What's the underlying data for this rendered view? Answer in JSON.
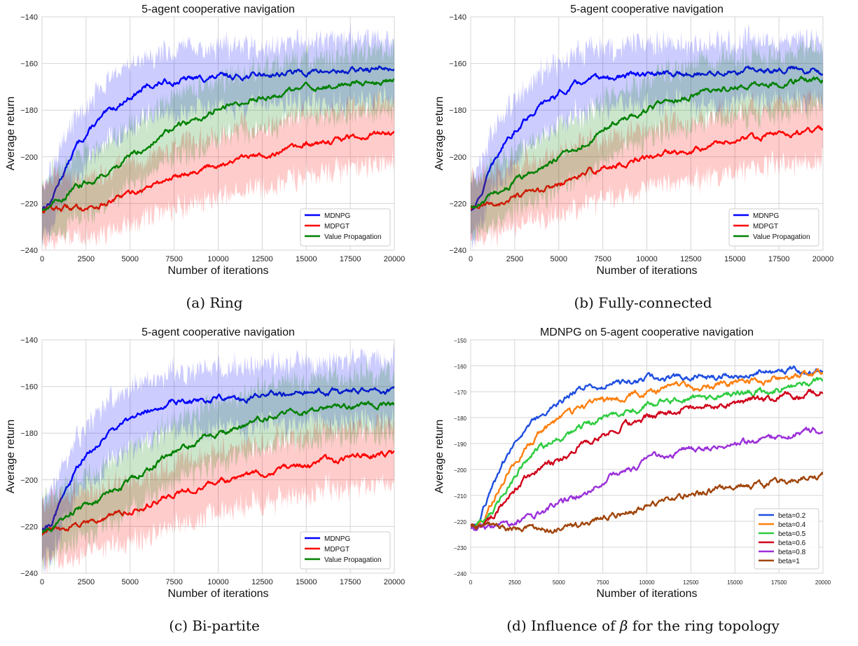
{
  "figure": {
    "captions": {
      "a": "(a) Ring",
      "b": "(b) Fully-connected",
      "c": "(c) Bi-partite",
      "d_prefix": "(d) Influence of ",
      "d_symbol": "β",
      "d_suffix": " for the ring topology"
    }
  },
  "chart_data": [
    {
      "id": "a",
      "type": "line",
      "title": "5-agent cooperative navigation",
      "xlabel": "Number of iterations",
      "ylabel": "Average return",
      "xlim": [
        0,
        20000
      ],
      "ylim": [
        -240,
        -140
      ],
      "xticks": [
        0,
        2500,
        5000,
        7500,
        10000,
        12500,
        15000,
        17500,
        20000
      ],
      "yticks": [
        -240,
        -220,
        -200,
        -180,
        -160,
        -140
      ],
      "grid": true,
      "legend": "bottom-right",
      "shaded_band": true,
      "x": [
        0,
        500,
        1000,
        2000,
        3000,
        4000,
        5000,
        6000,
        7000,
        8000,
        10000,
        12000,
        14000,
        16000,
        18000,
        20000
      ],
      "series": [
        {
          "name": "MDNPG",
          "color": "#0000ff",
          "values": [
            -222,
            -219,
            -210,
            -195,
            -186,
            -180,
            -174,
            -170,
            -168,
            -167,
            -166,
            -165,
            -164,
            -163.5,
            -163,
            -162
          ]
        },
        {
          "name": "MDPGT",
          "color": "#ff0000",
          "values": [
            -223,
            -222,
            -222,
            -222,
            -221,
            -219,
            -216,
            -213,
            -210,
            -207,
            -203,
            -200,
            -197,
            -194,
            -191,
            -189
          ]
        },
        {
          "name": "Value Propagation",
          "color": "#008000",
          "values": [
            -222,
            -221,
            -218,
            -213,
            -209,
            -205,
            -200,
            -195,
            -190,
            -186,
            -180,
            -175,
            -172,
            -170,
            -168,
            -167
          ]
        }
      ]
    },
    {
      "id": "b",
      "type": "line",
      "title": "5-agent cooperative navigation",
      "xlabel": "Number of iterations",
      "ylabel": "Average return",
      "xlim": [
        0,
        20000
      ],
      "ylim": [
        -240,
        -140
      ],
      "xticks": [
        0,
        2500,
        5000,
        7500,
        10000,
        12500,
        15000,
        17500,
        20000
      ],
      "yticks": [
        -240,
        -220,
        -200,
        -180,
        -160,
        -140
      ],
      "grid": true,
      "legend": "bottom-right",
      "shaded_band": true,
      "x": [
        0,
        500,
        1000,
        2000,
        3000,
        4000,
        5000,
        6000,
        7000,
        8000,
        10000,
        12000,
        14000,
        16000,
        18000,
        20000
      ],
      "series": [
        {
          "name": "MDNPG",
          "color": "#0000ff",
          "values": [
            -223,
            -218,
            -208,
            -193,
            -184,
            -178,
            -173,
            -169,
            -167,
            -166,
            -165,
            -164.5,
            -164,
            -163,
            -162,
            -163
          ]
        },
        {
          "name": "MDPGT",
          "color": "#ff0000",
          "values": [
            -223,
            -222,
            -221,
            -219,
            -217,
            -215,
            -212,
            -209,
            -206,
            -204,
            -200,
            -197,
            -194,
            -192,
            -190,
            -189
          ]
        },
        {
          "name": "Value Propagation",
          "color": "#008000",
          "values": [
            -222,
            -221,
            -218,
            -213,
            -209,
            -205,
            -200,
            -196,
            -191,
            -186,
            -180,
            -175,
            -171,
            -169,
            -168,
            -167
          ]
        }
      ]
    },
    {
      "id": "c",
      "type": "line",
      "title": "5-agent cooperative navigation",
      "xlabel": "Number of iterations",
      "ylabel": "Average return",
      "xlim": [
        0,
        20000
      ],
      "ylim": [
        -240,
        -140
      ],
      "xticks": [
        0,
        2500,
        5000,
        7500,
        10000,
        12500,
        15000,
        17500,
        20000
      ],
      "yticks": [
        -240,
        -220,
        -200,
        -180,
        -160,
        -140
      ],
      "grid": true,
      "legend": "bottom-right",
      "shaded_band": true,
      "x": [
        0,
        500,
        1000,
        2000,
        3000,
        4000,
        5000,
        6000,
        7000,
        8000,
        10000,
        12000,
        14000,
        16000,
        18000,
        20000
      ],
      "series": [
        {
          "name": "MDNPG",
          "color": "#0000ff",
          "values": [
            -221,
            -219,
            -210,
            -195,
            -186,
            -179,
            -174,
            -170,
            -167,
            -166,
            -165,
            -164,
            -163,
            -162.5,
            -162,
            -161
          ]
        },
        {
          "name": "MDPGT",
          "color": "#ff0000",
          "values": [
            -223,
            -222,
            -222,
            -220,
            -218,
            -216,
            -213,
            -210,
            -207,
            -205,
            -201,
            -198,
            -195,
            -192,
            -190,
            -189
          ]
        },
        {
          "name": "Value Propagation",
          "color": "#008000",
          "values": [
            -222,
            -221,
            -218,
            -213,
            -209,
            -205,
            -200,
            -195,
            -190,
            -186,
            -180,
            -175,
            -171,
            -169,
            -168,
            -167
          ]
        }
      ]
    },
    {
      "id": "d",
      "type": "line",
      "title": "MDNPG on 5-agent cooperative navigation",
      "xlabel": "Number of iterations",
      "ylabel": "Average return",
      "xlim": [
        0,
        20000
      ],
      "ylim": [
        -240,
        -150
      ],
      "xticks": [
        0,
        2500,
        5000,
        7500,
        10000,
        12500,
        15000,
        17500,
        20000
      ],
      "yticks": [
        -240,
        -230,
        -220,
        -210,
        -200,
        -190,
        -180,
        -170,
        -160,
        -150
      ],
      "grid": true,
      "legend": "bottom-right",
      "shaded_band": false,
      "x": [
        0,
        500,
        1000,
        2000,
        3000,
        4000,
        5000,
        6000,
        7000,
        8000,
        10000,
        12000,
        14000,
        16000,
        18000,
        20000
      ],
      "series": [
        {
          "name": "beta=0.2",
          "color": "#1f4fe0",
          "values": [
            -222,
            -220,
            -210,
            -196,
            -186,
            -179,
            -174,
            -170,
            -168,
            -167,
            -166,
            -165,
            -164,
            -163,
            -162,
            -162
          ]
        },
        {
          "name": "beta=0.4",
          "color": "#ff7f0e",
          "values": [
            -222,
            -221,
            -216,
            -203,
            -193,
            -186,
            -181,
            -178,
            -175,
            -173,
            -170,
            -168,
            -167,
            -166,
            -165,
            -163
          ]
        },
        {
          "name": "beta=0.5",
          "color": "#2ecc40",
          "values": [
            -222,
            -222,
            -219,
            -208,
            -198,
            -192,
            -188,
            -185,
            -182,
            -179,
            -175,
            -173,
            -172,
            -170,
            -168,
            -165
          ]
        },
        {
          "name": "beta=0.6",
          "color": "#d0021b",
          "values": [
            -222,
            -222,
            -220,
            -212,
            -204,
            -199,
            -197,
            -192,
            -188,
            -185,
            -180,
            -177,
            -175,
            -173,
            -172,
            -170
          ]
        },
        {
          "name": "beta=0.8",
          "color": "#9b30d9",
          "values": [
            -223,
            -223,
            -223,
            -222,
            -220,
            -217,
            -213,
            -210,
            -206,
            -202,
            -197,
            -193,
            -191,
            -189,
            -187,
            -185
          ]
        },
        {
          "name": "beta=1",
          "color": "#a0450b",
          "values": [
            -222,
            -222,
            -222,
            -222,
            -223,
            -224,
            -223,
            -222,
            -220,
            -218,
            -214,
            -210,
            -208,
            -206,
            -204,
            -202
          ]
        }
      ]
    }
  ]
}
